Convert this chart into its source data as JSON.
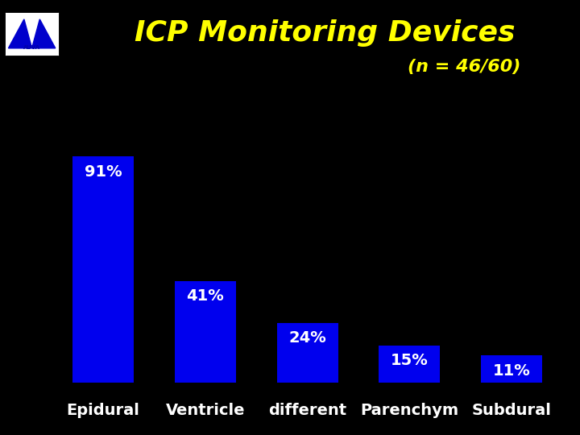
{
  "title": "ICP Monitoring Devices",
  "subtitle": "(n = 46/60)",
  "categories": [
    "Epidural",
    "Ventricle",
    "different",
    "Parenchym",
    "Subdural"
  ],
  "values": [
    91,
    41,
    24,
    15,
    11
  ],
  "bar_color": "#0000EE",
  "background_color": "#000000",
  "title_color": "#FFFF00",
  "subtitle_color": "#FFFF00",
  "label_color": "#FFFFFF",
  "xlabel_color": "#FFFFFF",
  "title_fontsize": 26,
  "subtitle_fontsize": 16,
  "label_fontsize": 14,
  "xlabel_fontsize": 14,
  "ylim": [
    0,
    105
  ],
  "logo_color": "#FFFFFF",
  "logo_border": "#FFFFFF",
  "logo_text_color": "#0000AA"
}
